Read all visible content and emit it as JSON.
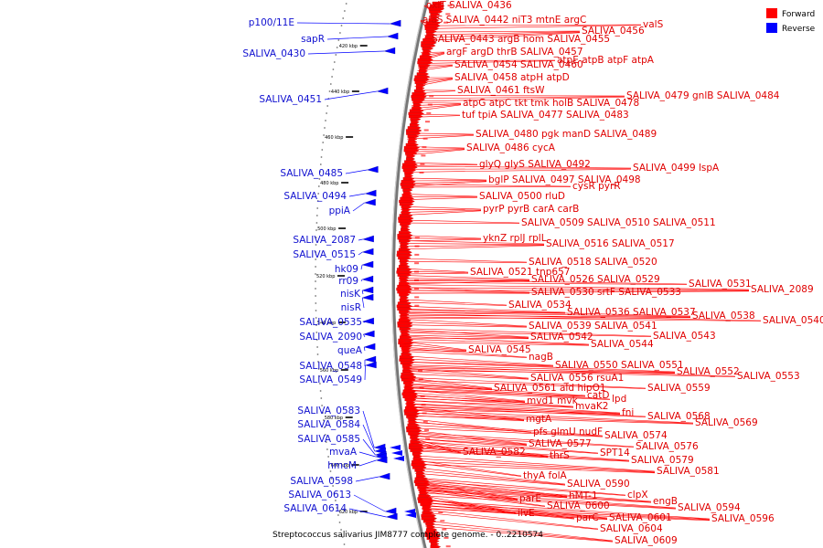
{
  "caption": "Streptococcus salivarius JIM8777 complete genome. - 0..2210574",
  "legend": [
    {
      "label": "Forward",
      "color": "#ff0000"
    },
    {
      "label": "Reverse",
      "color": "#0000ff"
    }
  ],
  "colors": {
    "forward": "#ff0000",
    "reverse": "#0000ff",
    "forward_label": "#e00000",
    "reverse_label": "#1010d0",
    "backbone": "#888888"
  },
  "scale_ticks": [
    "420 kbp",
    "440 kbp",
    "460 kbp",
    "480 kbp",
    "500 kbp",
    "520 kbp",
    "540 kbp",
    "560 kbp",
    "580 kbp",
    "600 kbp",
    "620 kbp"
  ],
  "forward_labels": [
    "oxlT",
    "SALIVA_0436",
    "alaS",
    "SALIVA_0442",
    "niT3",
    "mtnE",
    "argC",
    "SALIVA_0456",
    "valS",
    "SALIVA_0443",
    "argB",
    "hom",
    "SALIVA_0455",
    "argF",
    "argD",
    "thrB",
    "SALIVA_0457",
    "atpE",
    "atpB",
    "atpF",
    "atpA",
    "SALIVA_0454",
    "SALIVA_0460",
    "SALIVA_0458",
    "atpH",
    "atpD",
    "SALIVA_0461",
    "ftsW",
    "SALIVA_0479",
    "gnlB",
    "SALIVA_0484",
    "atpG",
    "atpC",
    "tkt",
    "tmk",
    "holB",
    "SALIVA_0478",
    "tuf",
    "tpiA",
    "SALIVA_0477",
    "SALIVA_0483",
    "SALIVA_0480",
    "pgk",
    "manD",
    "SALIVA_0489",
    "SALIVA_0486",
    "cycA",
    "glyQ",
    "glyS",
    "SALIVA_0492",
    "SALIVA_0499",
    "lspA",
    "bglP",
    "SALIVA_0497",
    "SALIVA_0498",
    "cysR",
    "pyrR",
    "SALIVA_0500",
    "rluD",
    "pyrP",
    "pyrB",
    "carA",
    "carB",
    "SALIVA_0509",
    "SALIVA_0510",
    "SALIVA_0511",
    "yknZ",
    "rplJ",
    "rplL",
    "SALIVA_0516",
    "SALIVA_0517",
    "SALIVA_0518",
    "SALIVA_0520",
    "SALIVA_0521",
    "tnp657",
    "SALIVA_0526",
    "SALIVA_0529",
    "SALIVA_0531",
    "SALIVA_0530",
    "srtF",
    "SALIVA_0533",
    "SALIVA_2089",
    "SALIVA_0534",
    "SALIVA_0536",
    "SALIVA_0537",
    "SALIVA_0538",
    "SALIVA_0540",
    "SALIVA_0539",
    "SALIVA_0541",
    "SALIVA_0542",
    "SALIVA_0543",
    "SALIVA_0544",
    "SALIVA_0545",
    "nagB",
    "SALIVA_0550",
    "SALIVA_0551",
    "SALIVA_0552",
    "SALIVA_0553",
    "SALIVA_0556",
    "rsuA1",
    "SALIVA_0561",
    "ald",
    "hipO1",
    "SALIVA_0559",
    "catD",
    "mvd1",
    "mvk",
    "lpd",
    "mvaK2",
    "fni",
    "SALIVA_0568",
    "SALIVA_0569",
    "mgtA",
    "pfs",
    "glmU",
    "nudF",
    "SALIVA_0574",
    "SALIVA_0577",
    "SALIVA_0576",
    "SALIVA_0582",
    "thrS",
    "SPT14",
    "SALIVA_0579",
    "SALIVA_0581",
    "thyA",
    "folA",
    "SALIVA_0590",
    "hMT-1",
    "clpX",
    "engB",
    "parE",
    "SALIVA_0600",
    "SALIVA_0594",
    "SALIVA_0596",
    "ilvE",
    "parC",
    "SALIVA_0601",
    "SALIVA_0604",
    "SALIVA_0609"
  ],
  "reverse_labels": [
    "p100/11E",
    "sapR",
    "SALIVA_0430",
    "SALIVA_0451",
    "SALIVA_0485",
    "SALIVA_0494",
    "ppiA",
    "SALIVA_2087",
    "SALIVA_0515",
    "hk09",
    "rr09",
    "nisK",
    "nisR",
    "SALIVA_0535",
    "SALIVA_2090",
    "queA",
    "SALIVA_0548",
    "SALIVA_0549",
    "SALIVA_0583",
    "SALIVA_0584",
    "SALIVA_0585",
    "mvaA",
    "hmcM",
    "SALIVA_0598",
    "SALIVA_0613",
    "SALIVA_0614"
  ]
}
